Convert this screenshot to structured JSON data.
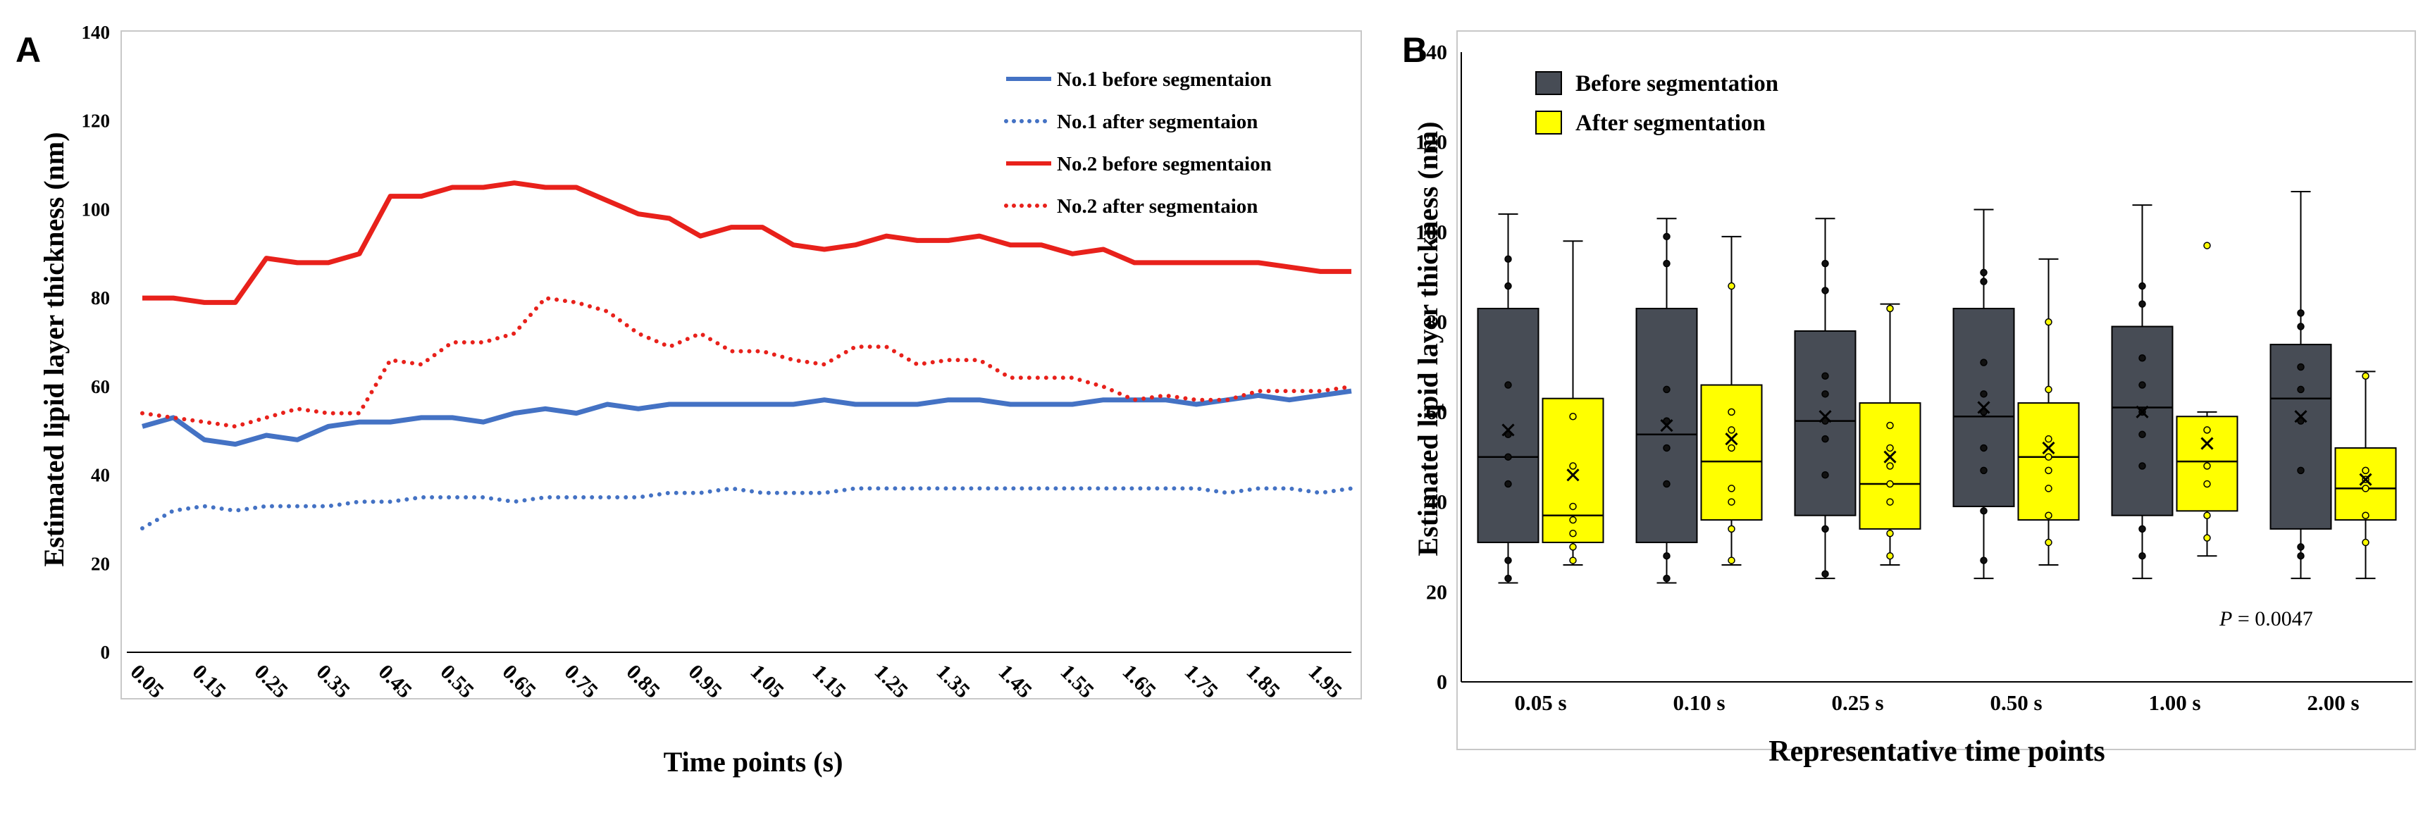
{
  "chart_data": [
    {
      "panel": "A",
      "type": "line",
      "xlabel": "Time points (s)",
      "ylabel": "Estimated lipid layer thickness (nm)",
      "ylim": [
        0,
        140
      ],
      "yticks": [
        0,
        20,
        40,
        60,
        80,
        100,
        120,
        140
      ],
      "grid": false,
      "legend_position": "top-right",
      "x": [
        0.05,
        0.1,
        0.15,
        0.2,
        0.25,
        0.3,
        0.35,
        0.4,
        0.45,
        0.5,
        0.55,
        0.6,
        0.65,
        0.7,
        0.75,
        0.8,
        0.85,
        0.9,
        0.95,
        1.0,
        1.05,
        1.1,
        1.15,
        1.2,
        1.25,
        1.3,
        1.35,
        1.4,
        1.45,
        1.5,
        1.55,
        1.6,
        1.65,
        1.7,
        1.75,
        1.8,
        1.85,
        1.9,
        1.95,
        2.0
      ],
      "xtick_labels": [
        "0.05",
        "0.15",
        "0.25",
        "0.35",
        "0.45",
        "0.55",
        "0.65",
        "0.75",
        "0.85",
        "0.95",
        "1.05",
        "1.15",
        "1.25",
        "1.35",
        "1.45",
        "1.55",
        "1.65",
        "1.75",
        "1.85",
        "1.95"
      ],
      "series": [
        {
          "name": "No.1 before segmentaion",
          "color": "#4472C4",
          "style": "solid",
          "values": [
            51,
            53,
            48,
            47,
            49,
            48,
            51,
            52,
            52,
            53,
            53,
            52,
            54,
            55,
            54,
            56,
            55,
            56,
            56,
            56,
            56,
            56,
            57,
            56,
            56,
            56,
            57,
            57,
            56,
            56,
            56,
            57,
            57,
            57,
            56,
            57,
            58,
            57,
            58,
            59
          ]
        },
        {
          "name": "No.1 after segmentaion",
          "color": "#4472C4",
          "style": "dotted",
          "values": [
            28,
            32,
            33,
            32,
            33,
            33,
            33,
            34,
            34,
            35,
            35,
            35,
            34,
            35,
            35,
            35,
            35,
            36,
            36,
            37,
            36,
            36,
            36,
            37,
            37,
            37,
            37,
            37,
            37,
            37,
            37,
            37,
            37,
            37,
            37,
            36,
            37,
            37,
            36,
            37
          ]
        },
        {
          "name": "No.2 before segmentaion",
          "color": "#E8211B",
          "style": "solid",
          "values": [
            80,
            80,
            79,
            79,
            89,
            88,
            88,
            90,
            103,
            103,
            105,
            105,
            106,
            105,
            105,
            102,
            99,
            98,
            94,
            96,
            96,
            92,
            91,
            92,
            94,
            93,
            93,
            94,
            92,
            92,
            90,
            91,
            88,
            88,
            88,
            88,
            88,
            87,
            86,
            86
          ]
        },
        {
          "name": "No.2 after segmentaion",
          "color": "#E8211B",
          "style": "dotted",
          "values": [
            54,
            53,
            52,
            51,
            53,
            55,
            54,
            54,
            66,
            65,
            70,
            70,
            72,
            80,
            79,
            77,
            72,
            69,
            72,
            68,
            68,
            66,
            65,
            69,
            69,
            65,
            66,
            66,
            62,
            62,
            62,
            60,
            57,
            58,
            57,
            57,
            59,
            59,
            59,
            60
          ]
        }
      ]
    },
    {
      "panel": "B",
      "type": "box",
      "xlabel": "Representative time points",
      "ylabel": "Estimated lipid layer thickness (nm)",
      "ylim": [
        0,
        140
      ],
      "yticks": [
        0,
        20,
        40,
        60,
        80,
        100,
        120,
        140
      ],
      "grid": false,
      "legend_position": "top-left",
      "categories": [
        "0.05 s",
        "0.10 s",
        "0.25 s",
        "0.50 s",
        "1.00 s",
        "2.00 s"
      ],
      "annotation": {
        "prefix": "P",
        "text": " = 0.0047"
      },
      "series": [
        {
          "name": "Before segmentation",
          "color": "#474C55",
          "boxes": [
            {
              "min": 22,
              "q1": 31,
              "median": 50,
              "q3": 83,
              "max": 104,
              "mean": 56,
              "points": [
                94,
                88,
                66,
                55,
                50,
                44,
                27,
                23
              ]
            },
            {
              "min": 22,
              "q1": 31,
              "median": 55,
              "q3": 83,
              "max": 103,
              "mean": 57,
              "points": [
                99,
                93,
                65,
                58,
                52,
                44,
                28,
                23
              ]
            },
            {
              "min": 23,
              "q1": 37,
              "median": 58,
              "q3": 78,
              "max": 103,
              "mean": 59,
              "points": [
                93,
                87,
                68,
                64,
                58,
                54,
                46,
                34,
                24
              ]
            },
            {
              "min": 23,
              "q1": 39,
              "median": 59,
              "q3": 83,
              "max": 105,
              "mean": 61,
              "points": [
                91,
                89,
                71,
                64,
                60,
                52,
                47,
                38,
                27
              ]
            },
            {
              "min": 23,
              "q1": 37,
              "median": 61,
              "q3": 79,
              "max": 106,
              "mean": 60,
              "points": [
                88,
                84,
                72,
                66,
                60,
                55,
                48,
                34,
                28
              ]
            },
            {
              "min": 23,
              "q1": 34,
              "median": 63,
              "q3": 75,
              "max": 109,
              "mean": 59,
              "points": [
                82,
                79,
                70,
                65,
                58,
                47,
                30,
                28
              ]
            }
          ]
        },
        {
          "name": "After segmentation",
          "color": "#FFFF00",
          "boxes": [
            {
              "min": 26,
              "q1": 31,
              "median": 37,
              "q3": 63,
              "max": 98,
              "mean": 46,
              "points": [
                59,
                48,
                39,
                36,
                33,
                30,
                27
              ]
            },
            {
              "min": 26,
              "q1": 36,
              "median": 49,
              "q3": 66,
              "max": 99,
              "mean": 54,
              "points": [
                88,
                60,
                56,
                52,
                43,
                40,
                34,
                27
              ]
            },
            {
              "min": 26,
              "q1": 34,
              "median": 44,
              "q3": 62,
              "max": 84,
              "mean": 50,
              "points": [
                83,
                57,
                52,
                48,
                44,
                40,
                33,
                28
              ]
            },
            {
              "min": 26,
              "q1": 36,
              "median": 50,
              "q3": 62,
              "max": 94,
              "mean": 52,
              "points": [
                80,
                65,
                54,
                50,
                47,
                43,
                37,
                31
              ]
            },
            {
              "min": 28,
              "q1": 38,
              "median": 49,
              "q3": 59,
              "max": 60,
              "mean": 53,
              "points": [
                97,
                56,
                48,
                44,
                37,
                32
              ]
            },
            {
              "min": 23,
              "q1": 36,
              "median": 43,
              "q3": 52,
              "max": 69,
              "mean": 45,
              "points": [
                68,
                47,
                45,
                43,
                37,
                31
              ]
            }
          ]
        }
      ]
    }
  ],
  "panels": {
    "a_label": "A",
    "b_label": "B"
  },
  "colors": {
    "axis": "#000000",
    "text": "#000000"
  }
}
